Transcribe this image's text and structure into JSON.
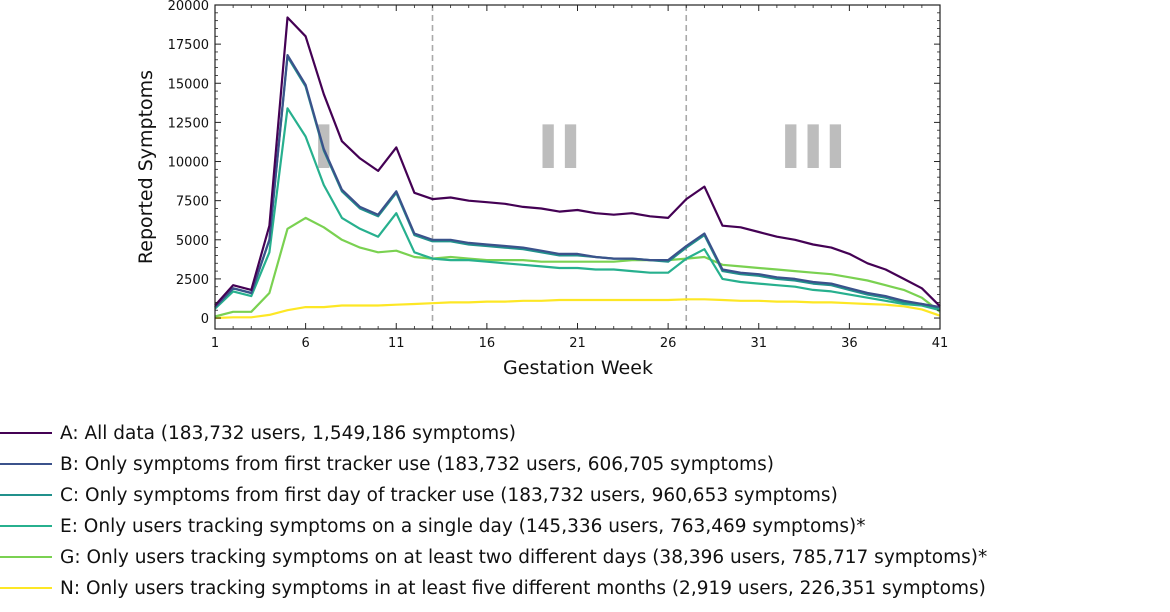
{
  "chart_data": {
    "type": "line",
    "xlabel": "Gestation Week",
    "ylabel": "Reported Symptoms",
    "xlim": [
      1,
      41
    ],
    "ylim": [
      -700,
      20000
    ],
    "xticks": [
      1,
      6,
      11,
      16,
      21,
      26,
      31,
      36,
      41
    ],
    "yticks": [
      0,
      2500,
      5000,
      7500,
      10000,
      12500,
      15000,
      17500,
      20000
    ],
    "vlines": [
      13,
      27
    ],
    "trimesters": [
      {
        "label": "I",
        "x": 7,
        "y": 11000
      },
      {
        "label": "II",
        "x": 20,
        "y": 11000
      },
      {
        "label": "III",
        "x": 34,
        "y": 11000
      }
    ],
    "x": [
      1,
      2,
      3,
      4,
      5,
      6,
      7,
      8,
      9,
      10,
      11,
      12,
      13,
      14,
      15,
      16,
      17,
      18,
      19,
      20,
      21,
      22,
      23,
      24,
      25,
      26,
      27,
      28,
      29,
      30,
      31,
      32,
      33,
      34,
      35,
      36,
      37,
      38,
      39,
      40,
      41
    ],
    "series": [
      {
        "name": "A: All data (183,732 users, 1,549,186 symptoms)",
        "color": "#440154",
        "values": [
          800,
          2100,
          1800,
          5900,
          19200,
          18000,
          14300,
          11300,
          10200,
          9400,
          10900,
          8000,
          7600,
          7700,
          7500,
          7400,
          7300,
          7100,
          7000,
          6800,
          6900,
          6700,
          6600,
          6700,
          6500,
          6400,
          7600,
          8400,
          5900,
          5800,
          5500,
          5200,
          5000,
          4700,
          4500,
          4100,
          3500,
          3100,
          2500,
          1900,
          750
        ]
      },
      {
        "name": "B: Only symptoms from first tracker use (183,732 users, 606,705 symptoms)",
        "color": "#3b528b",
        "values": [
          700,
          1900,
          1600,
          5000,
          16800,
          14900,
          10800,
          8200,
          7100,
          6600,
          8100,
          5400,
          5000,
          5000,
          4800,
          4700,
          4600,
          4500,
          4300,
          4100,
          4100,
          3900,
          3800,
          3800,
          3700,
          3700,
          4600,
          5400,
          3100,
          2900,
          2800,
          2600,
          2500,
          2300,
          2200,
          1900,
          1600,
          1400,
          1100,
          900,
          700
        ]
      },
      {
        "name": "C: Only symptoms from first day of tracker use (183,732 users, 960,653 symptoms)",
        "color": "#21918c",
        "values": [
          700,
          1900,
          1600,
          5000,
          16700,
          14800,
          10700,
          8100,
          7000,
          6500,
          8000,
          5300,
          4900,
          4900,
          4700,
          4600,
          4500,
          4400,
          4200,
          4000,
          4000,
          3900,
          3800,
          3800,
          3700,
          3600,
          4500,
          5300,
          3000,
          2800,
          2700,
          2500,
          2400,
          2200,
          2100,
          1800,
          1500,
          1300,
          1000,
          900,
          650
        ]
      },
      {
        "name": "E: Only users tracking symptoms on a single day (145,336 users, 763,469 symptoms)*",
        "color": "#27b08e",
        "values": [
          600,
          1700,
          1400,
          4200,
          13400,
          11600,
          8500,
          6400,
          5700,
          5200,
          6700,
          4200,
          3800,
          3700,
          3700,
          3600,
          3500,
          3400,
          3300,
          3200,
          3200,
          3100,
          3100,
          3000,
          2900,
          2900,
          3800,
          4400,
          2500,
          2300,
          2200,
          2100,
          2000,
          1800,
          1700,
          1500,
          1300,
          1100,
          900,
          800,
          500
        ]
      },
      {
        "name": "G: Only users tracking symptoms on at least two different days (38,396 users, 785,717 symptoms)*",
        "color": "#7ad151",
        "values": [
          100,
          400,
          400,
          1600,
          5700,
          6400,
          5800,
          5000,
          4500,
          4200,
          4300,
          3900,
          3800,
          3900,
          3800,
          3700,
          3700,
          3700,
          3600,
          3600,
          3600,
          3600,
          3600,
          3700,
          3700,
          3700,
          3800,
          3900,
          3400,
          3300,
          3200,
          3100,
          3000,
          2900,
          2800,
          2600,
          2400,
          2100,
          1800,
          1300,
          400
        ]
      },
      {
        "name": "N: Only users tracking symptoms in at least five different months (2,919 users, 226,351 symptoms)",
        "color": "#fde725",
        "values": [
          0,
          50,
          50,
          200,
          500,
          700,
          700,
          800,
          800,
          800,
          850,
          900,
          950,
          1000,
          1000,
          1050,
          1050,
          1100,
          1100,
          1150,
          1150,
          1150,
          1150,
          1150,
          1150,
          1150,
          1200,
          1200,
          1150,
          1100,
          1100,
          1050,
          1050,
          1000,
          1000,
          950,
          900,
          850,
          750,
          550,
          150
        ]
      }
    ]
  }
}
